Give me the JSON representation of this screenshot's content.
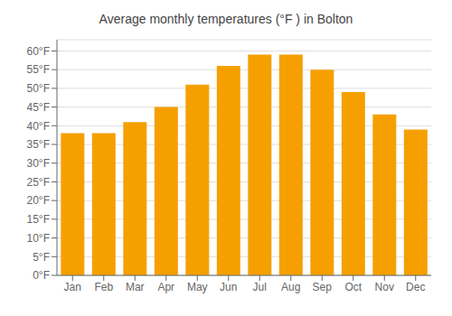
{
  "chart_data": {
    "type": "bar",
    "title": "Average monthly temperatures (°F ) in Bolton",
    "categories": [
      "Jan",
      "Feb",
      "Mar",
      "Apr",
      "May",
      "Jun",
      "Jul",
      "Aug",
      "Sep",
      "Oct",
      "Nov",
      "Dec"
    ],
    "values": [
      38,
      38,
      41,
      45,
      51,
      56,
      59,
      59,
      55,
      49,
      43,
      39
    ],
    "color": "#F5A000",
    "ylim": [
      0,
      63
    ],
    "yticks": [
      {
        "value": 0,
        "label": "0°F"
      },
      {
        "value": 5,
        "label": "5°F"
      },
      {
        "value": 10,
        "label": "10°F"
      },
      {
        "value": 15,
        "label": "15°F"
      },
      {
        "value": 20,
        "label": "20°F"
      },
      {
        "value": 25,
        "label": "25°F"
      },
      {
        "value": 30,
        "label": "30°F"
      },
      {
        "value": 35,
        "label": "35°F"
      },
      {
        "value": 40,
        "label": "40°F"
      },
      {
        "value": 45,
        "label": "45°F"
      },
      {
        "value": 50,
        "label": "50°F"
      },
      {
        "value": 55,
        "label": "55°F"
      },
      {
        "value": 60,
        "label": "60°F"
      }
    ],
    "grid": true
  }
}
